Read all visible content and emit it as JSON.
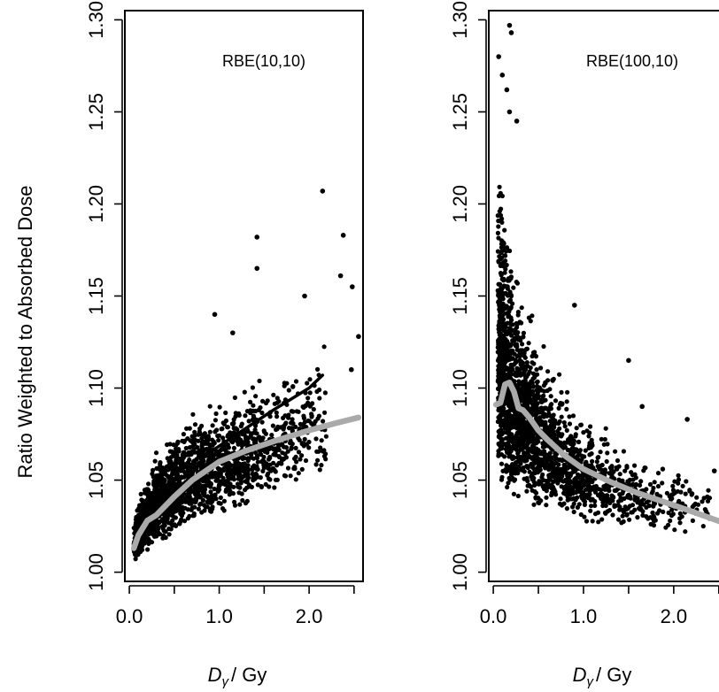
{
  "figure": {
    "ylabel": "Ratio Weighted to Absorbed Dose",
    "xlabel_main": "D",
    "xlabel_sub": "γ",
    "xlabel_unit": "/ Gy"
  },
  "chart_data": [
    {
      "type": "scatter",
      "label": "RBE(10,10)",
      "xlim": [
        -0.05,
        2.6
      ],
      "ylim": [
        0.995,
        1.305
      ],
      "x_ticks": [
        0,
        0.5,
        1.0,
        1.5,
        2.0,
        2.5
      ],
      "x_tick_labels": [
        "0.0",
        "",
        "1.0",
        "",
        "2.0",
        ""
      ],
      "y_ticks": [
        1.0,
        1.05,
        1.1,
        1.15,
        1.2,
        1.25,
        1.3
      ],
      "y_tick_labels": [
        "1.00",
        "1.05",
        "1.10",
        "1.15",
        "1.20",
        "1.25",
        "1.30"
      ],
      "point_color": "#000000",
      "cloud": [
        {
          "x": 0.05,
          "lo": 1.005,
          "hi": 1.03,
          "n": 240
        },
        {
          "x": 0.15,
          "lo": 1.01,
          "hi": 1.05,
          "n": 260
        },
        {
          "x": 0.3,
          "lo": 1.015,
          "hi": 1.07,
          "n": 280
        },
        {
          "x": 0.5,
          "lo": 1.02,
          "hi": 1.085,
          "n": 280
        },
        {
          "x": 0.75,
          "lo": 1.025,
          "hi": 1.095,
          "n": 260
        },
        {
          "x": 1.0,
          "lo": 1.03,
          "hi": 1.1,
          "n": 220
        },
        {
          "x": 1.25,
          "lo": 1.035,
          "hi": 1.105,
          "n": 180
        },
        {
          "x": 1.5,
          "lo": 1.04,
          "hi": 1.11,
          "n": 130
        },
        {
          "x": 1.75,
          "lo": 1.045,
          "hi": 1.115,
          "n": 90
        },
        {
          "x": 2.0,
          "lo": 1.05,
          "hi": 1.12,
          "n": 60
        },
        {
          "x": 2.2,
          "lo": 1.05,
          "hi": 1.13,
          "n": 30
        }
      ],
      "outliers": [
        {
          "x": 2.15,
          "y": 1.207
        },
        {
          "x": 2.38,
          "y": 1.183
        },
        {
          "x": 1.42,
          "y": 1.182
        },
        {
          "x": 1.42,
          "y": 1.165
        },
        {
          "x": 2.35,
          "y": 1.161
        },
        {
          "x": 2.48,
          "y": 1.155
        },
        {
          "x": 2.55,
          "y": 1.128
        },
        {
          "x": 2.47,
          "y": 1.11
        },
        {
          "x": 1.95,
          "y": 1.15
        },
        {
          "x": 0.95,
          "y": 1.14
        },
        {
          "x": 1.15,
          "y": 1.13
        }
      ],
      "trend_black": {
        "x": [
          0.8,
          1.2,
          1.6,
          2.0,
          2.15
        ],
        "y": [
          1.062,
          1.075,
          1.088,
          1.1,
          1.107
        ]
      },
      "trend_gray": {
        "color": "#aaaaaa",
        "x": [
          0.05,
          0.1,
          0.2,
          0.3,
          0.4,
          0.5,
          0.7,
          1.0,
          1.3,
          1.6,
          2.0,
          2.3,
          2.55
        ],
        "y": [
          1.013,
          1.02,
          1.028,
          1.031,
          1.036,
          1.041,
          1.05,
          1.06,
          1.066,
          1.071,
          1.077,
          1.081,
          1.084
        ]
      }
    },
    {
      "type": "scatter",
      "label": "RBE(100,10)",
      "xlim": [
        -0.05,
        2.6
      ],
      "ylim": [
        0.995,
        1.305
      ],
      "x_ticks": [
        0,
        0.5,
        1.0,
        1.5,
        2.0,
        2.5
      ],
      "x_tick_labels": [
        "0.0",
        "",
        "1.0",
        "",
        "2.0",
        ""
      ],
      "y_ticks": [
        1.0,
        1.05,
        1.1,
        1.15,
        1.2,
        1.25,
        1.3
      ],
      "y_tick_labels": [
        "1.00",
        "1.05",
        "1.10",
        "1.15",
        "1.20",
        "1.25",
        "1.30"
      ],
      "point_color": "#000000",
      "cloud": [
        {
          "x": 0.05,
          "lo": 1.045,
          "hi": 1.23,
          "n": 320
        },
        {
          "x": 0.12,
          "lo": 1.045,
          "hi": 1.22,
          "n": 320
        },
        {
          "x": 0.22,
          "lo": 1.04,
          "hi": 1.18,
          "n": 300
        },
        {
          "x": 0.35,
          "lo": 1.035,
          "hi": 1.16,
          "n": 280
        },
        {
          "x": 0.5,
          "lo": 1.03,
          "hi": 1.14,
          "n": 260
        },
        {
          "x": 0.7,
          "lo": 1.03,
          "hi": 1.12,
          "n": 220
        },
        {
          "x": 0.9,
          "lo": 1.028,
          "hi": 1.1,
          "n": 170
        },
        {
          "x": 1.1,
          "lo": 1.025,
          "hi": 1.09,
          "n": 130
        },
        {
          "x": 1.35,
          "lo": 1.025,
          "hi": 1.08,
          "n": 100
        },
        {
          "x": 1.6,
          "lo": 1.022,
          "hi": 1.07,
          "n": 70
        },
        {
          "x": 1.85,
          "lo": 1.02,
          "hi": 1.065,
          "n": 50
        },
        {
          "x": 2.1,
          "lo": 1.02,
          "hi": 1.06,
          "n": 35
        },
        {
          "x": 2.4,
          "lo": 1.02,
          "hi": 1.055,
          "n": 20
        }
      ],
      "outliers": [
        {
          "x": 0.18,
          "y": 1.297
        },
        {
          "x": 0.2,
          "y": 1.293
        },
        {
          "x": 0.06,
          "y": 1.28
        },
        {
          "x": 0.1,
          "y": 1.27
        },
        {
          "x": 0.15,
          "y": 1.262
        },
        {
          "x": 0.26,
          "y": 1.245
        },
        {
          "x": 0.18,
          "y": 1.25
        },
        {
          "x": 0.9,
          "y": 1.145
        },
        {
          "x": 1.5,
          "y": 1.115
        },
        {
          "x": 2.15,
          "y": 1.083
        },
        {
          "x": 2.55,
          "y": 1.07
        },
        {
          "x": 2.45,
          "y": 1.055
        },
        {
          "x": 1.65,
          "y": 1.09
        }
      ],
      "trend_gray": {
        "color": "#aaaaaa",
        "x": [
          0.03,
          0.08,
          0.13,
          0.18,
          0.23,
          0.28,
          0.33,
          0.4,
          0.5,
          0.6,
          0.8,
          1.0,
          1.3,
          1.6,
          1.9,
          2.2,
          2.6
        ],
        "y": [
          1.091,
          1.092,
          1.102,
          1.103,
          1.098,
          1.089,
          1.088,
          1.084,
          1.077,
          1.072,
          1.063,
          1.056,
          1.049,
          1.043,
          1.038,
          1.033,
          1.026
        ]
      }
    }
  ]
}
